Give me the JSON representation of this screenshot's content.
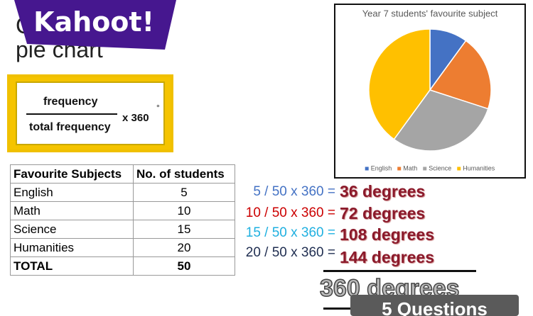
{
  "logo": "Kahoot!",
  "title": {
    "line1": "C",
    "line2": "pie chart"
  },
  "formula": {
    "numerator": "frequency",
    "denominator": "total frequency",
    "multiplier": "x 360",
    "degree_sign": "°"
  },
  "table": {
    "header": [
      "Favourite Subjects",
      "No. of students"
    ],
    "rows": [
      [
        "English",
        "5"
      ],
      [
        "Math",
        "10"
      ],
      [
        "Science",
        "15"
      ],
      [
        "Humanities",
        "20"
      ],
      [
        "TOTAL",
        "50"
      ]
    ]
  },
  "calculations": [
    {
      "expression": "5 / 50 x 360 =",
      "result": "36 degrees"
    },
    {
      "expression": "10 / 50 x 360 =",
      "result": "72 degrees"
    },
    {
      "expression": "15 / 50 x 360 =",
      "result": "108 degrees"
    },
    {
      "expression": "20 / 50 x 360 =",
      "result": "144 degrees"
    }
  ],
  "total": "360 degrees",
  "button": "5 Questions",
  "chart_data": {
    "type": "pie",
    "title": "Year 7 students' favourite subject",
    "categories": [
      "English",
      "Math",
      "Science",
      "Humanities"
    ],
    "values": [
      5,
      10,
      15,
      20
    ],
    "colors": [
      "#4472c4",
      "#ed7d31",
      "#a5a5a5",
      "#ffc000"
    ],
    "legend": "bottom"
  }
}
